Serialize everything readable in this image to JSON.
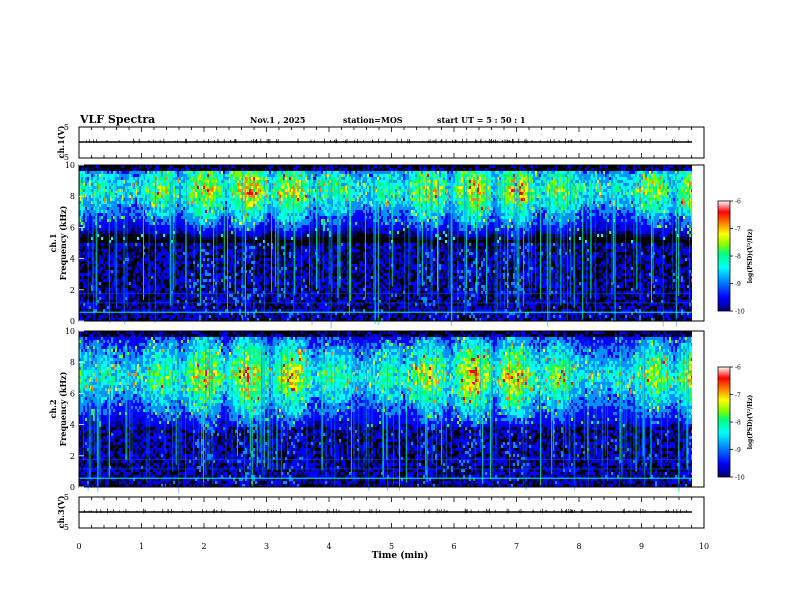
{
  "header": {
    "title": "VLF Spectra",
    "date": "Nov.1 , 2025",
    "station": "station=MOS",
    "start": "start UT = 5 : 50 : 1"
  },
  "chart_data": [
    {
      "type": "line",
      "name": "ch1-waveform",
      "ylabel": "ch.1(V)",
      "ylim": [
        -5,
        5
      ],
      "yticks": [
        "5",
        "-5"
      ],
      "x": [
        0,
        10
      ],
      "values": [
        0,
        0
      ],
      "xlim": [
        0,
        10
      ]
    },
    {
      "type": "heatmap",
      "name": "ch1-spectrogram",
      "ylabel": "ch.1\nFrequency (kHz)",
      "ylabel_line1": "ch.1",
      "ylabel_line2": "Frequency (kHz)",
      "ylim": [
        0,
        10
      ],
      "yticks": [
        "0",
        "2",
        "4",
        "6",
        "8",
        "10"
      ],
      "xlim": [
        0,
        9.83
      ],
      "band_center_khz": 8.5,
      "band_low_khz": 5.0,
      "colorbar": {
        "label": "log(PSD)(V²/Hz)",
        "ticks": [
          "-6",
          "-7",
          "-8",
          "-9",
          "-10"
        ],
        "range": [
          -10,
          -6
        ]
      }
    },
    {
      "type": "heatmap",
      "name": "ch2-spectrogram",
      "ylabel": "ch.2\nFrequency (kHz)",
      "ylabel_line1": "ch.2",
      "ylabel_line2": "Frequency (kHz)",
      "ylim": [
        0,
        10
      ],
      "yticks": [
        "0",
        "2",
        "4",
        "6",
        "8",
        "10"
      ],
      "xlim": [
        0,
        9.83
      ],
      "band_center_khz": 7.2,
      "band_low_khz": 4.0,
      "colorbar": {
        "label": "log(PSD)(V²/Hz)",
        "ticks": [
          "-6",
          "-7",
          "-8",
          "-9",
          "-10"
        ],
        "range": [
          -10,
          -6
        ]
      }
    },
    {
      "type": "line",
      "name": "ch3-waveform",
      "ylabel": "ch.3(V)",
      "ylim": [
        -5,
        5
      ],
      "yticks": [
        "5",
        "-5"
      ],
      "x": [
        0,
        10
      ],
      "values": [
        0,
        0
      ],
      "xlim": [
        0,
        10
      ],
      "xlabel": "Time (min)",
      "xticks": [
        "0",
        "1",
        "2",
        "3",
        "4",
        "5",
        "6",
        "7",
        "8",
        "9",
        "10"
      ]
    }
  ],
  "colors": {
    "background": "#ffffff",
    "plot_background": "#000000",
    "colormap": [
      "#00006e",
      "#0000ff",
      "#0090ff",
      "#00ffff",
      "#00ff80",
      "#80ff00",
      "#ffff00",
      "#ff8000",
      "#ff0000",
      "#ffffff"
    ]
  }
}
